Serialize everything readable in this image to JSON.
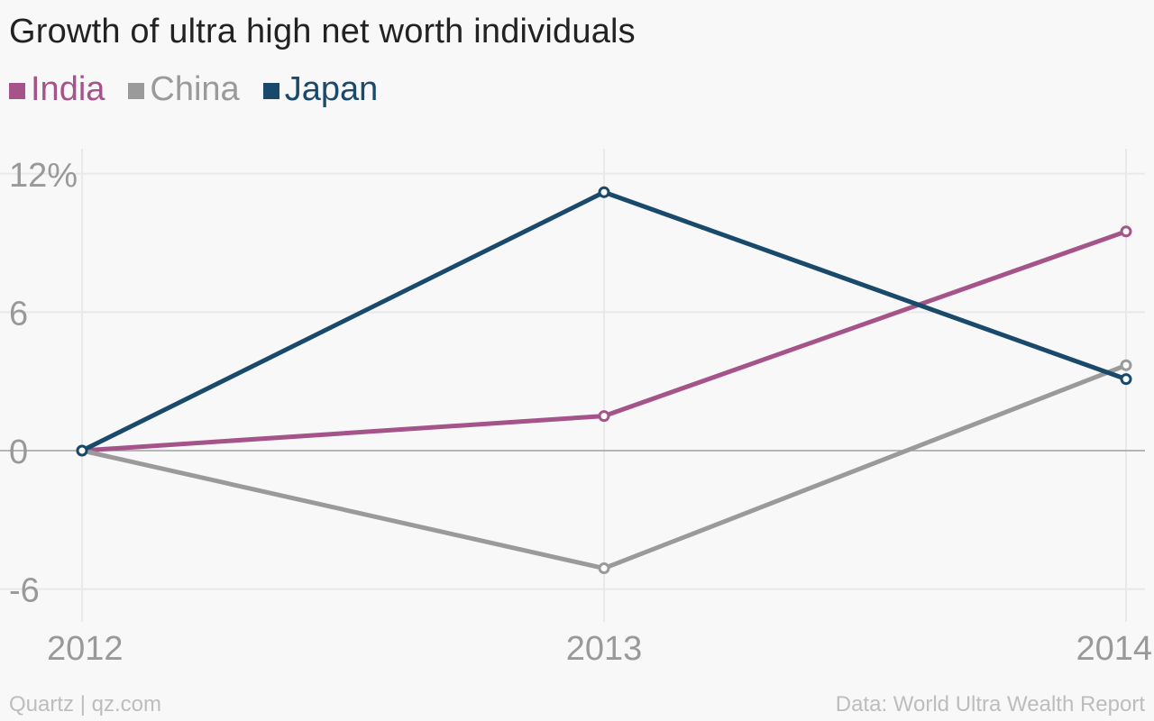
{
  "chart_data": {
    "type": "line",
    "title": "Growth of ultra high net worth individuals",
    "x": [
      "2012",
      "2013",
      "2014"
    ],
    "series": [
      {
        "name": "India",
        "color": "#a5548a",
        "values": [
          0,
          1.5,
          9.5
        ]
      },
      {
        "name": "China",
        "color": "#9a9a9a",
        "values": [
          0,
          -5.1,
          3.7
        ]
      },
      {
        "name": "Japan",
        "color": "#1a4a6b",
        "values": [
          0,
          11.2,
          3.1
        ]
      }
    ],
    "yticks": [
      "12%",
      "6",
      "0",
      "-6"
    ],
    "ytick_values": [
      12,
      6,
      0,
      -6
    ],
    "ylim": [
      -7,
      13
    ],
    "xlabel": "",
    "ylabel": "",
    "grid": true,
    "legend_position": "top-left"
  },
  "footer": {
    "source_left": "Quartz | qz.com",
    "source_right": "Data: World Ultra Wealth Report"
  }
}
